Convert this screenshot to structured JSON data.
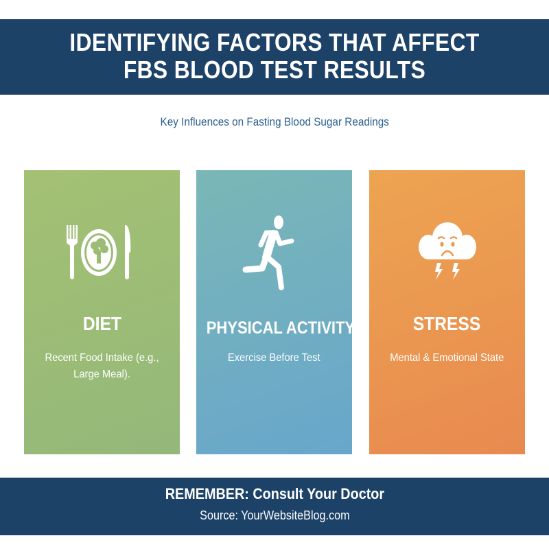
{
  "header": {
    "title_line1": "IDENTIFYING FACTORS THAT AFFECT",
    "title_line2": "FBS BLOOD TEST RESULTS"
  },
  "subtitle": "Key Influences on Fasting Blood Sugar Readings",
  "cards": [
    {
      "title": "DIET",
      "description": "Recent Food Intake (e.g., Large Meal).",
      "icon": "plate-fork-knife-icon",
      "color": "#9cbc76"
    },
    {
      "title": "PHYSICAL ACTIVITY",
      "description": "Exercise Before Test",
      "icon": "running-person-icon",
      "color": "#70aec1"
    },
    {
      "title": "STRESS",
      "description": "Mental & Emotional State",
      "icon": "stressed-cloud-lightning-icon",
      "color": "#eb9750"
    }
  ],
  "footer": {
    "reminder": "REMEMBER: Consult Your Doctor",
    "source": "Source: YourWebsiteBlog.com"
  }
}
